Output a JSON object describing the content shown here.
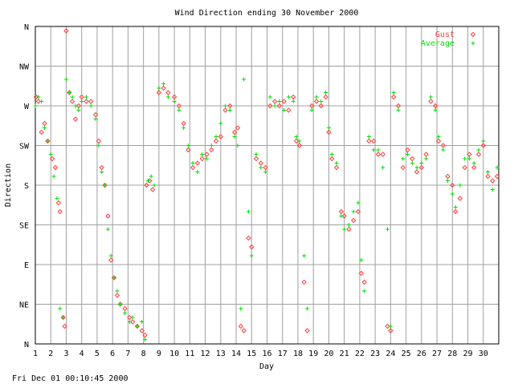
{
  "chart_data": {
    "type": "scatter",
    "title": "Wind Direction ending 30 November 2000",
    "xlabel": "Day",
    "ylabel": "Direction",
    "footer": "Fri Dec 01 00:10:45 2000",
    "xlim": [
      1,
      31
    ],
    "ylim": [
      0,
      360
    ],
    "grid": true,
    "legend_position": "top-right",
    "x_ticks": [
      1,
      2,
      3,
      4,
      5,
      6,
      7,
      8,
      9,
      10,
      11,
      12,
      13,
      14,
      15,
      16,
      17,
      18,
      19,
      20,
      21,
      22,
      23,
      24,
      25,
      26,
      27,
      28,
      29,
      30
    ],
    "y_ticks": [
      {
        "value": 0,
        "label": "N"
      },
      {
        "value": 45,
        "label": "NE"
      },
      {
        "value": 90,
        "label": "E"
      },
      {
        "value": 135,
        "label": "SE"
      },
      {
        "value": 180,
        "label": "S"
      },
      {
        "value": 225,
        "label": "SW"
      },
      {
        "value": 270,
        "label": "W"
      },
      {
        "value": 315,
        "label": "NW"
      },
      {
        "value": 360,
        "label": "N"
      }
    ],
    "colors": {
      "gust": "#ff4040",
      "average": "#00e000",
      "grid": "#a0a0a0",
      "axis": "#000000"
    },
    "series": [
      {
        "name": "Gust",
        "marker": "diamond",
        "points": [
          [
            1.05,
            280
          ],
          [
            1.2,
            275
          ],
          [
            1.4,
            240
          ],
          [
            1.6,
            250
          ],
          [
            1.8,
            230
          ],
          [
            2.1,
            210
          ],
          [
            2.3,
            200
          ],
          [
            2.5,
            160
          ],
          [
            2.6,
            150
          ],
          [
            2.8,
            30
          ],
          [
            2.9,
            20
          ],
          [
            3.0,
            355
          ],
          [
            3.2,
            285
          ],
          [
            3.4,
            275
          ],
          [
            3.6,
            255
          ],
          [
            3.8,
            270
          ],
          [
            4.0,
            280
          ],
          [
            4.3,
            275
          ],
          [
            4.6,
            275
          ],
          [
            4.9,
            260
          ],
          [
            5.1,
            230
          ],
          [
            5.3,
            200
          ],
          [
            5.5,
            180
          ],
          [
            5.7,
            145
          ],
          [
            5.9,
            95
          ],
          [
            6.1,
            75
          ],
          [
            6.3,
            55
          ],
          [
            6.5,
            45
          ],
          [
            6.8,
            40
          ],
          [
            7.1,
            30
          ],
          [
            7.3,
            25
          ],
          [
            7.6,
            20
          ],
          [
            7.9,
            15
          ],
          [
            8.1,
            10
          ],
          [
            8.2,
            180
          ],
          [
            8.4,
            185
          ],
          [
            8.6,
            175
          ],
          [
            9.0,
            285
          ],
          [
            9.3,
            290
          ],
          [
            9.6,
            285
          ],
          [
            10.0,
            280
          ],
          [
            10.3,
            270
          ],
          [
            10.6,
            250
          ],
          [
            10.9,
            220
          ],
          [
            11.2,
            200
          ],
          [
            11.5,
            205
          ],
          [
            11.8,
            210
          ],
          [
            12.1,
            215
          ],
          [
            12.4,
            220
          ],
          [
            12.7,
            230
          ],
          [
            13.0,
            235
          ],
          [
            13.3,
            265
          ],
          [
            13.6,
            270
          ],
          [
            13.9,
            240
          ],
          [
            14.1,
            245
          ],
          [
            14.3,
            20
          ],
          [
            14.5,
            15
          ],
          [
            14.8,
            120
          ],
          [
            15.0,
            110
          ],
          [
            15.3,
            210
          ],
          [
            15.6,
            205
          ],
          [
            15.9,
            200
          ],
          [
            16.2,
            270
          ],
          [
            16.5,
            275
          ],
          [
            16.8,
            270
          ],
          [
            17.1,
            275
          ],
          [
            17.4,
            265
          ],
          [
            17.7,
            280
          ],
          [
            17.9,
            230
          ],
          [
            18.1,
            225
          ],
          [
            18.4,
            70
          ],
          [
            18.6,
            15
          ],
          [
            18.9,
            270
          ],
          [
            19.2,
            275
          ],
          [
            19.5,
            270
          ],
          [
            19.8,
            280
          ],
          [
            20.0,
            240
          ],
          [
            20.2,
            210
          ],
          [
            20.5,
            200
          ],
          [
            20.8,
            150
          ],
          [
            21.0,
            145
          ],
          [
            21.3,
            130
          ],
          [
            21.6,
            140
          ],
          [
            21.9,
            150
          ],
          [
            22.1,
            80
          ],
          [
            22.3,
            70
          ],
          [
            22.6,
            230
          ],
          [
            22.9,
            230
          ],
          [
            23.2,
            215
          ],
          [
            23.5,
            215
          ],
          [
            23.8,
            20
          ],
          [
            24.0,
            15
          ],
          [
            24.2,
            280
          ],
          [
            24.5,
            270
          ],
          [
            24.8,
            200
          ],
          [
            25.1,
            220
          ],
          [
            25.4,
            210
          ],
          [
            25.7,
            195
          ],
          [
            26.0,
            200
          ],
          [
            26.3,
            215
          ],
          [
            26.6,
            275
          ],
          [
            26.9,
            270
          ],
          [
            27.1,
            230
          ],
          [
            27.4,
            225
          ],
          [
            27.7,
            190
          ],
          [
            28.0,
            180
          ],
          [
            28.2,
            150
          ],
          [
            28.5,
            165
          ],
          [
            28.8,
            200
          ],
          [
            29.1,
            215
          ],
          [
            29.4,
            200
          ],
          [
            29.7,
            215
          ],
          [
            30.0,
            225
          ],
          [
            30.3,
            190
          ],
          [
            30.6,
            185
          ],
          [
            30.9,
            190
          ]
        ]
      },
      {
        "name": "Average",
        "marker": "plus",
        "points": [
          [
            1.0,
            270
          ],
          [
            1.2,
            280
          ],
          [
            1.4,
            275
          ],
          [
            1.6,
            245
          ],
          [
            1.8,
            230
          ],
          [
            2.0,
            215
          ],
          [
            2.2,
            190
          ],
          [
            2.4,
            165
          ],
          [
            2.6,
            40
          ],
          [
            2.8,
            30
          ],
          [
            3.0,
            300
          ],
          [
            3.2,
            285
          ],
          [
            3.4,
            280
          ],
          [
            3.6,
            270
          ],
          [
            3.8,
            265
          ],
          [
            4.0,
            275
          ],
          [
            4.3,
            280
          ],
          [
            4.6,
            270
          ],
          [
            4.9,
            255
          ],
          [
            5.1,
            225
          ],
          [
            5.3,
            195
          ],
          [
            5.5,
            180
          ],
          [
            5.7,
            130
          ],
          [
            5.9,
            100
          ],
          [
            6.1,
            75
          ],
          [
            6.3,
            60
          ],
          [
            6.5,
            45
          ],
          [
            6.8,
            35
          ],
          [
            7.1,
            25
          ],
          [
            7.3,
            30
          ],
          [
            7.6,
            20
          ],
          [
            7.9,
            25
          ],
          [
            8.1,
            5
          ],
          [
            8.3,
            185
          ],
          [
            8.5,
            190
          ],
          [
            8.7,
            180
          ],
          [
            9.0,
            290
          ],
          [
            9.3,
            295
          ],
          [
            9.6,
            280
          ],
          [
            10.0,
            275
          ],
          [
            10.3,
            265
          ],
          [
            10.6,
            245
          ],
          [
            10.9,
            225
          ],
          [
            11.2,
            205
          ],
          [
            11.5,
            195
          ],
          [
            11.8,
            215
          ],
          [
            12.1,
            210
          ],
          [
            12.4,
            225
          ],
          [
            12.7,
            235
          ],
          [
            13.0,
            250
          ],
          [
            13.3,
            270
          ],
          [
            13.6,
            265
          ],
          [
            13.9,
            235
          ],
          [
            14.1,
            225
          ],
          [
            14.3,
            40
          ],
          [
            14.5,
            300
          ],
          [
            14.8,
            150
          ],
          [
            15.0,
            100
          ],
          [
            15.3,
            215
          ],
          [
            15.6,
            200
          ],
          [
            15.9,
            195
          ],
          [
            16.2,
            280
          ],
          [
            16.5,
            270
          ],
          [
            16.8,
            275
          ],
          [
            17.1,
            265
          ],
          [
            17.4,
            280
          ],
          [
            17.7,
            275
          ],
          [
            17.9,
            235
          ],
          [
            18.1,
            230
          ],
          [
            18.4,
            100
          ],
          [
            18.6,
            40
          ],
          [
            18.9,
            265
          ],
          [
            19.2,
            280
          ],
          [
            19.5,
            275
          ],
          [
            19.8,
            285
          ],
          [
            20.0,
            245
          ],
          [
            20.2,
            215
          ],
          [
            20.5,
            205
          ],
          [
            20.8,
            145
          ],
          [
            21.0,
            130
          ],
          [
            21.3,
            135
          ],
          [
            21.6,
            150
          ],
          [
            21.9,
            160
          ],
          [
            22.1,
            95
          ],
          [
            22.3,
            60
          ],
          [
            22.6,
            235
          ],
          [
            22.9,
            220
          ],
          [
            23.2,
            220
          ],
          [
            23.5,
            200
          ],
          [
            23.8,
            130
          ],
          [
            24.0,
            20
          ],
          [
            24.2,
            285
          ],
          [
            24.5,
            265
          ],
          [
            24.8,
            210
          ],
          [
            25.1,
            215
          ],
          [
            25.4,
            205
          ],
          [
            25.7,
            200
          ],
          [
            26.0,
            205
          ],
          [
            26.3,
            210
          ],
          [
            26.6,
            280
          ],
          [
            26.9,
            265
          ],
          [
            27.1,
            235
          ],
          [
            27.4,
            220
          ],
          [
            27.7,
            185
          ],
          [
            28.0,
            170
          ],
          [
            28.2,
            155
          ],
          [
            28.5,
            180
          ],
          [
            28.8,
            210
          ],
          [
            29.1,
            210
          ],
          [
            29.4,
            205
          ],
          [
            29.7,
            220
          ],
          [
            30.0,
            230
          ],
          [
            30.3,
            195
          ],
          [
            30.6,
            175
          ],
          [
            30.9,
            200
          ]
        ]
      }
    ]
  }
}
